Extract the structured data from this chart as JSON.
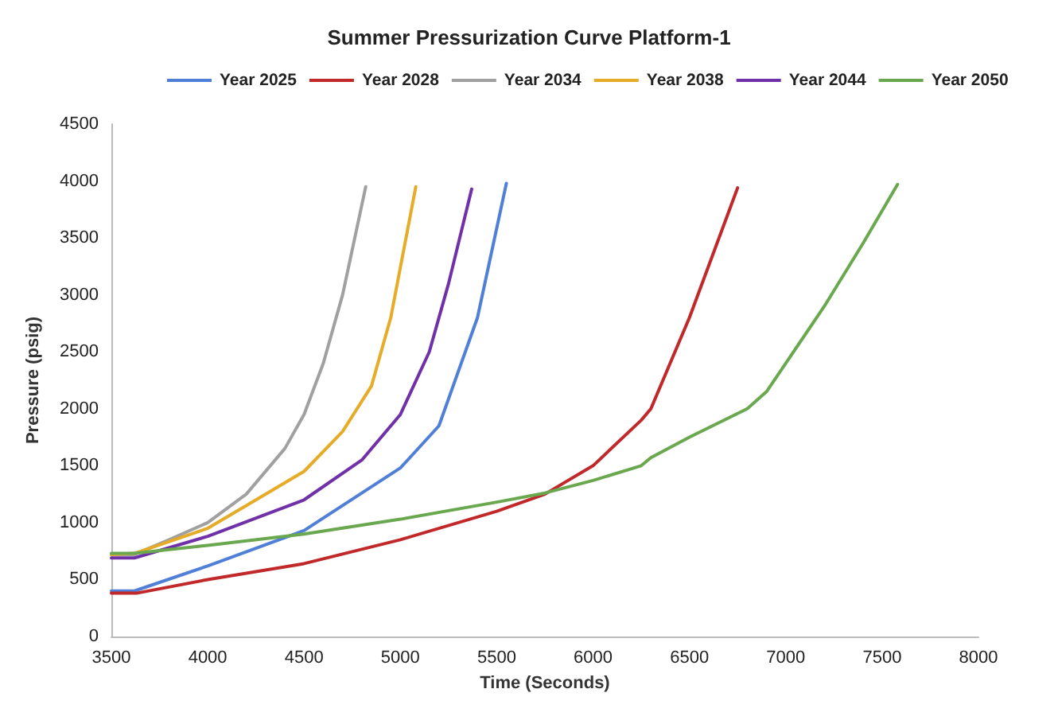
{
  "chart_data": {
    "type": "line",
    "title": "Summer Pressurization Curve Platform-1",
    "xlabel": "Time (Seconds)",
    "ylabel": "Pressure (psig)",
    "xlim": [
      3500,
      8000
    ],
    "xticks": [
      3500,
      4000,
      4500,
      5000,
      5500,
      6000,
      6500,
      7000,
      7500,
      8000
    ],
    "ylim": [
      0,
      4500
    ],
    "yticks": [
      0,
      500,
      1000,
      1500,
      2000,
      2500,
      3000,
      3500,
      4000,
      4500
    ],
    "grid": false,
    "legend": "top",
    "marker": "none",
    "line_style": "solid",
    "series": [
      {
        "name": "Year 2025",
        "color": "#4f7fd6",
        "x": [
          3500,
          3620,
          4000,
          4500,
          5000,
          5200,
          5400,
          5550
        ],
        "values": [
          400,
          400,
          620,
          930,
          1480,
          1850,
          2800,
          3980
        ]
      },
      {
        "name": "Year 2028",
        "color": "#c0282a",
        "x": [
          3500,
          3630,
          4000,
          4500,
          5000,
          5500,
          5750,
          6000,
          6250,
          6300,
          6500,
          6750
        ],
        "values": [
          380,
          380,
          500,
          640,
          850,
          1100,
          1250,
          1500,
          1900,
          2000,
          2800,
          3940
        ]
      },
      {
        "name": "Year 2034",
        "color": "#a0a0a0",
        "x": [
          3500,
          3620,
          3800,
          4000,
          4200,
          4400,
          4500,
          4600,
          4700,
          4820
        ],
        "values": [
          720,
          720,
          850,
          1000,
          1250,
          1650,
          1950,
          2400,
          3000,
          3950
        ]
      },
      {
        "name": "Year 2038",
        "color": "#e6ac28",
        "x": [
          3500,
          3620,
          4000,
          4200,
          4500,
          4700,
          4850,
          4950,
          5080
        ],
        "values": [
          720,
          730,
          950,
          1150,
          1450,
          1800,
          2200,
          2800,
          3950
        ]
      },
      {
        "name": "Year 2044",
        "color": "#7030a8",
        "x": [
          3500,
          3620,
          4000,
          4500,
          4800,
          5000,
          5150,
          5250,
          5370
        ],
        "values": [
          690,
          690,
          880,
          1200,
          1550,
          1950,
          2500,
          3100,
          3930
        ]
      },
      {
        "name": "Year 2050",
        "color": "#6aa84f",
        "x": [
          3500,
          3620,
          4000,
          4500,
          5000,
          5500,
          5750,
          6000,
          6250,
          6300,
          6500,
          6800,
          6900,
          7000,
          7200,
          7400,
          7580
        ],
        "values": [
          730,
          730,
          800,
          900,
          1030,
          1180,
          1260,
          1370,
          1500,
          1570,
          1750,
          2000,
          2150,
          2400,
          2900,
          3450,
          3970
        ]
      }
    ]
  }
}
